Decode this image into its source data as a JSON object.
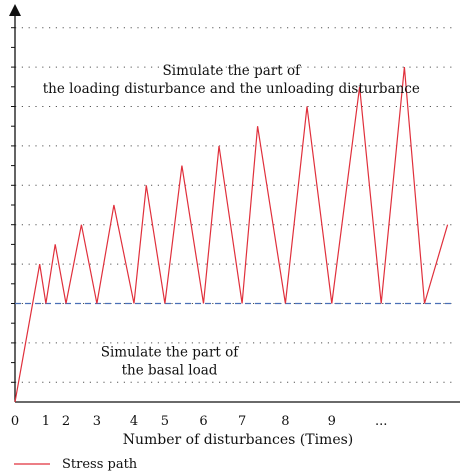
{
  "chart_data": {
    "type": "line",
    "xlabel": "Number of disturbances (Times)",
    "x_tick_labels": [
      "0",
      "1",
      "2",
      "3",
      "4",
      "5",
      "6",
      "7",
      "8",
      "9",
      "..."
    ],
    "xlim": [
      0,
      14.4
    ],
    "ylim": [
      0,
      10
    ],
    "grid": "horizontal dotted",
    "gridlines_y": [
      0.5,
      1.5,
      2.5,
      3.5,
      4.5,
      5.5,
      6.5,
      7.5,
      8.5,
      9.5
    ],
    "y_ticks": [
      0.5,
      1,
      1.5,
      2,
      2.5,
      3,
      3.5,
      4,
      4.5,
      5,
      5.5,
      6,
      6.5,
      7,
      7.5,
      8,
      8.5,
      9,
      9.5
    ],
    "basal_load_level": 2.5,
    "series": [
      {
        "name": "Stress path",
        "color": "#e0303c",
        "x": [
          0,
          0.8,
          1.0,
          1.3,
          1.65,
          2.15,
          2.65,
          3.2,
          3.85,
          4.25,
          4.85,
          5.4,
          6.1,
          6.6,
          7.35,
          7.85,
          8.75,
          9.45,
          10.25,
          11.15,
          11.85,
          12.6,
          13.25,
          14.0
        ],
        "y": [
          0,
          3.5,
          2.5,
          4.0,
          2.5,
          4.5,
          2.5,
          5.0,
          2.5,
          5.5,
          2.5,
          6.0,
          2.5,
          6.5,
          2.5,
          7.0,
          2.5,
          7.5,
          2.5,
          8.0,
          2.5,
          8.5,
          2.5,
          4.5
        ]
      }
    ],
    "annotations": [
      {
        "lines": [
          "Simulate the part of",
          "the loading disturbance and the unloading disturbance"
        ],
        "x": 7.0,
        "y": 8.3
      },
      {
        "lines": [
          "Simulate the part of",
          "the basal load"
        ],
        "x": 5.0,
        "y": 1.15
      }
    ],
    "legend": {
      "label": "Stress path",
      "position": "bottom-left"
    },
    "colors": {
      "stress_path": "#e0303c",
      "basal_line": "#4a6fb5"
    }
  }
}
